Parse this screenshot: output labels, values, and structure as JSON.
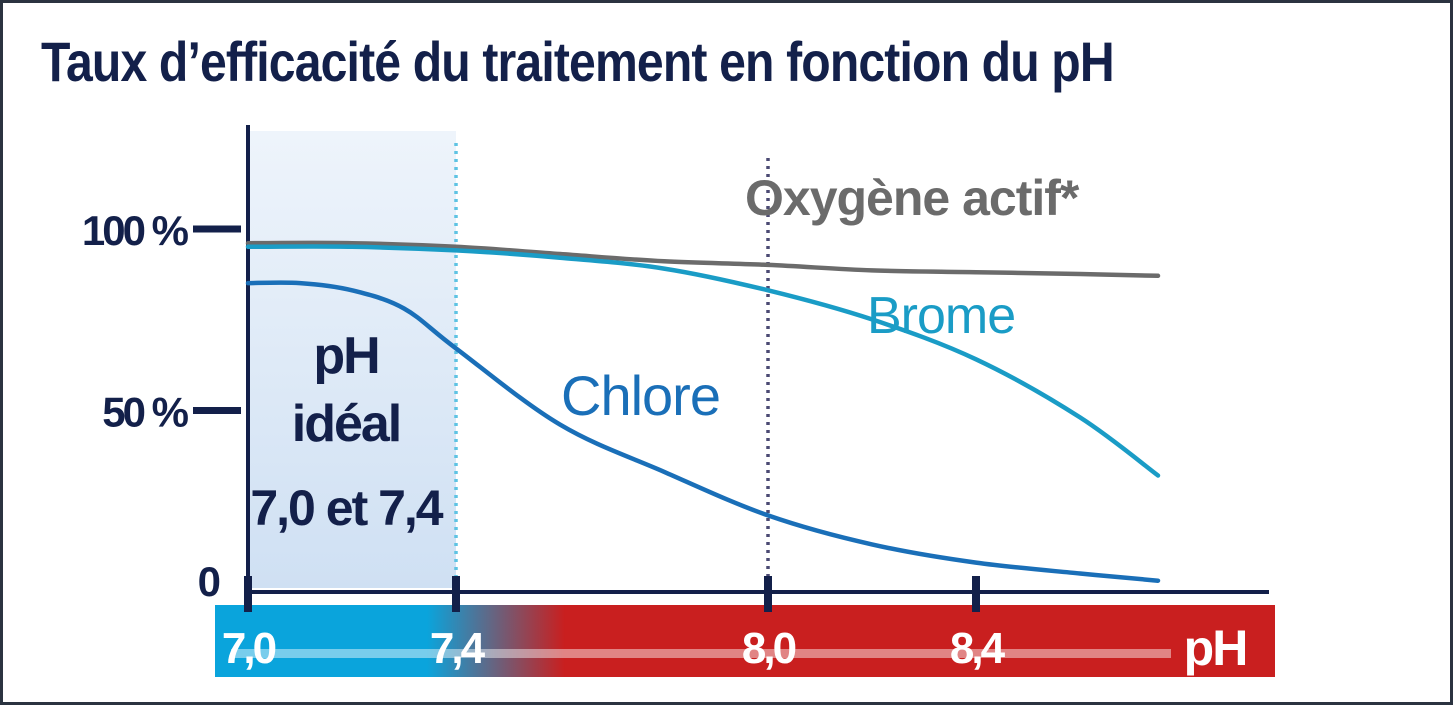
{
  "chart_data": {
    "type": "line",
    "title": "Taux d’efficacité du traitement en fonction du pH",
    "xlabel": "pH",
    "ylabel": "",
    "xlim": [
      7.0,
      8.75
    ],
    "ylim": [
      0,
      100
    ],
    "x_ticks": [
      {
        "value": 7.0,
        "label": "7,0"
      },
      {
        "value": 7.4,
        "label": "7,4"
      },
      {
        "value": 8.0,
        "label": "8,0"
      },
      {
        "value": 8.4,
        "label": "8,4"
      }
    ],
    "y_ticks": [
      {
        "value": 100,
        "label": "100 %"
      },
      {
        "value": 50,
        "label": "50 %"
      },
      {
        "value": 0,
        "label": "0"
      }
    ],
    "series": [
      {
        "name": "Oxygène actif*",
        "color": "#6b6b6b",
        "x": [
          7.0,
          7.2,
          7.4,
          7.6,
          7.8,
          8.0,
          8.2,
          8.4,
          8.6,
          8.75
        ],
        "values": [
          95,
          95,
          94,
          92,
          90,
          89,
          87.5,
          87,
          86.5,
          86
        ]
      },
      {
        "name": "Brome",
        "color": "#1a9cc6",
        "x": [
          7.0,
          7.2,
          7.4,
          7.6,
          7.8,
          8.0,
          8.2,
          8.4,
          8.6,
          8.75
        ],
        "values": [
          94,
          94,
          93,
          91,
          88,
          82,
          74,
          63,
          47,
          31
        ]
      },
      {
        "name": "Chlore",
        "color": "#1a6fb8",
        "x": [
          7.0,
          7.1,
          7.2,
          7.3,
          7.4,
          7.6,
          7.8,
          8.0,
          8.2,
          8.4,
          8.6,
          8.75
        ],
        "values": [
          84,
          84,
          82,
          77,
          66,
          45,
          32,
          20,
          12,
          7,
          4,
          2
        ]
      }
    ],
    "grid": false,
    "annotations": [
      {
        "text": "pH",
        "line": 1
      },
      {
        "text": "idéal",
        "line": 2
      },
      {
        "text": "7,0 et 7,4",
        "line": 3
      }
    ],
    "colors": {
      "axis": "#13204a",
      "ideal_band": "#cfe0f3",
      "acid_band": "#0aa4dc",
      "alkaline_band": "#c91f1f",
      "ideal_divider": "#5ec3e3",
      "high_divider": "#4b4a73"
    }
  }
}
